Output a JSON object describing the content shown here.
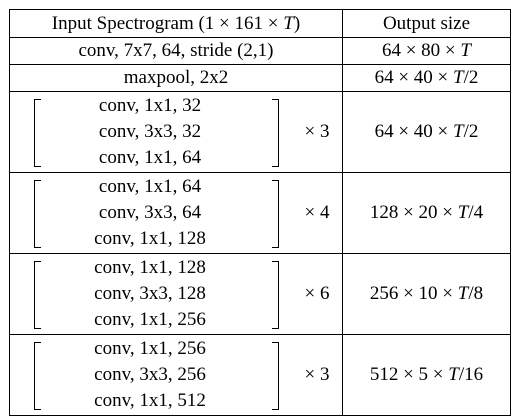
{
  "header": {
    "left_prefix": "Input Spectrogram (1 × 161 × ",
    "left_var": "T",
    "left_suffix": ")",
    "right": "Output size"
  },
  "rows": [
    {
      "layer": "conv, 7x7, 64, stride (2,1)",
      "output_prefix": "64 × 80 × ",
      "output_var": "T",
      "output_suffix": ""
    },
    {
      "layer": "maxpool, 2x2",
      "output_prefix": "64 × 40 × ",
      "output_var": "T",
      "output_suffix": "/2"
    }
  ],
  "blocks": [
    {
      "layers": [
        "conv, 1x1, 32",
        "conv, 3x3, 32",
        "conv, 1x1, 64"
      ],
      "repeat": "× 3",
      "output_prefix": "64 × 40 × ",
      "output_var": "T",
      "output_suffix": "/2"
    },
    {
      "layers": [
        "conv, 1x1, 64",
        "conv, 3x3, 64",
        "conv, 1x1, 128"
      ],
      "repeat": "× 4",
      "output_prefix": "128 × 20 × ",
      "output_var": "T",
      "output_suffix": "/4"
    },
    {
      "layers": [
        "conv, 1x1, 128",
        "conv, 3x3, 128",
        "conv, 1x1, 256"
      ],
      "repeat": "× 6",
      "output_prefix": "256 × 10 × ",
      "output_var": "T",
      "output_suffix": "/8"
    },
    {
      "layers": [
        "conv, 1x1, 256",
        "conv, 3x3, 256",
        "conv, 1x1, 512"
      ],
      "repeat": "× 3",
      "output_prefix": "512 × 5 × ",
      "output_var": "T",
      "output_suffix": "/16"
    }
  ]
}
